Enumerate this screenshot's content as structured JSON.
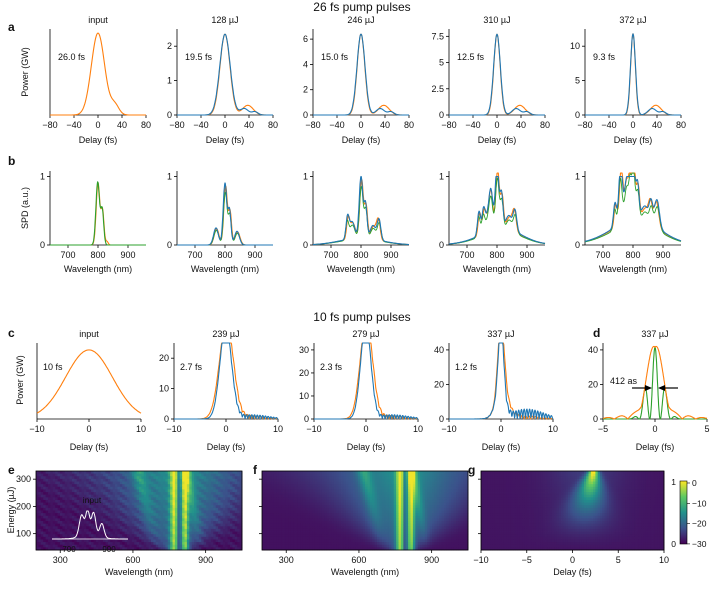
{
  "colors": {
    "sim": "#ff7f0e",
    "exp": "#1f77b4",
    "green": "#2ca02c",
    "white": "#ffffff"
  },
  "section_titles": {
    "top": "26 fs pump pulses",
    "bottom": "10 fs pump pulses"
  },
  "panel_letters": {
    "a": "a",
    "b": "b",
    "c": "c",
    "d": "d",
    "e": "e",
    "f": "f",
    "g": "g"
  },
  "chart_data": [
    {
      "id": "row-a",
      "type": "line",
      "ylabel": "Power (GW)",
      "xlabel": "Delay (fs)",
      "xlim": [
        -80,
        80
      ],
      "xticks": [
        -80,
        -40,
        0,
        40,
        80
      ],
      "subplots": [
        {
          "title": "input",
          "annotation": "26.0 fs",
          "ylim": [
            0,
            1.05
          ],
          "yticks": [],
          "peak": 1.0,
          "fwhm": 26,
          "series": [
            {
              "color_key": "sim"
            }
          ]
        },
        {
          "title": "128 µJ",
          "annotation": "19.5 fs",
          "ylim": [
            0,
            2.5
          ],
          "yticks": [
            0,
            1,
            2
          ],
          "peak": 2.35,
          "fwhm": 19.5,
          "series": [
            {
              "color_key": "sim"
            },
            {
              "color_key": "exp"
            }
          ]
        },
        {
          "title": "246 µJ",
          "annotation": "15.0 fs",
          "ylim": [
            0,
            6.8
          ],
          "yticks": [
            0,
            2,
            4,
            6
          ],
          "peak": 6.4,
          "fwhm": 15,
          "series": [
            {
              "color_key": "sim"
            },
            {
              "color_key": "exp"
            }
          ]
        },
        {
          "title": "310 µJ",
          "annotation": "12.5 fs",
          "ylim": [
            0,
            8.2
          ],
          "yticks": [
            0,
            2.5,
            5,
            7.5
          ],
          "peak": 7.7,
          "fwhm": 12.5,
          "series": [
            {
              "color_key": "sim"
            },
            {
              "color_key": "exp"
            }
          ]
        },
        {
          "title": "372 µJ",
          "annotation": "9.3 fs",
          "ylim": [
            0,
            12.5
          ],
          "yticks": [
            0,
            5,
            10
          ],
          "peak": 11.8,
          "fwhm": 9.3,
          "series": [
            {
              "color_key": "sim"
            },
            {
              "color_key": "exp"
            }
          ]
        }
      ]
    },
    {
      "id": "row-b",
      "type": "line",
      "ylabel": "SPD (a.u.)",
      "xlabel": "Wavelength (nm)",
      "xlim": [
        640,
        960
      ],
      "xticks": [
        700,
        800,
        900
      ],
      "ylim": [
        0,
        1.08
      ],
      "yticks": [
        0,
        1
      ],
      "subplots": [
        {
          "title": "",
          "bandwidth": 1
        },
        {
          "title": "",
          "bandwidth": 2
        },
        {
          "title": "",
          "bandwidth": 3
        },
        {
          "title": "",
          "bandwidth": 4
        },
        {
          "title": "",
          "bandwidth": 5
        }
      ]
    },
    {
      "id": "row-c",
      "type": "line",
      "ylabel": "Power (GW)",
      "xlabel": "Delay (fs)",
      "xlim": [
        -10,
        10
      ],
      "xticks": [
        -10,
        0,
        10
      ],
      "subplots": [
        {
          "title": "input",
          "annotation": "10 fs",
          "ylim": [
            0,
            1.1
          ],
          "yticks": [],
          "peak": 1.0,
          "fwhm": 10
        },
        {
          "title": "239 µJ",
          "annotation": "2.7 fs",
          "ylim": [
            0,
            25
          ],
          "yticks": [
            0,
            10,
            20
          ],
          "peak": 23.5,
          "fwhm": 2.7
        },
        {
          "title": "279 µJ",
          "annotation": "2.3 fs",
          "ylim": [
            0,
            33
          ],
          "yticks": [
            0,
            10,
            20,
            30
          ],
          "peak": 31.5,
          "fwhm": 2.3
        },
        {
          "title": "337 µJ",
          "annotation": "1.2 fs",
          "ylim": [
            0,
            44
          ],
          "yticks": [
            0,
            20,
            40
          ],
          "peak": 41.5,
          "fwhm": 1.2
        }
      ]
    },
    {
      "id": "panel-d",
      "type": "line",
      "title": "337 µJ",
      "xlabel": "Delay (fs)",
      "xlim": [
        -5,
        5
      ],
      "xticks": [
        -5,
        0,
        5
      ],
      "ylim": [
        0,
        44
      ],
      "yticks": [
        0,
        20,
        40
      ],
      "annotation": "412 as",
      "peak": 41.5,
      "fwhm": 0.412
    },
    {
      "id": "panel-e",
      "type": "heatmap",
      "ylabel": "Energy (µJ)",
      "xlabel": "Wavelength (nm)",
      "xlim": [
        200,
        1050
      ],
      "xticks": [
        300,
        600,
        900
      ],
      "ylim": [
        40,
        330
      ],
      "yticks": [
        100,
        200,
        300
      ],
      "inset": {
        "label": "input",
        "xticks": [
          700,
          900
        ]
      }
    },
    {
      "id": "panel-f",
      "type": "heatmap",
      "xlabel": "Wavelength (nm)",
      "xlim": [
        200,
        1050
      ],
      "xticks": [
        300,
        600,
        900
      ],
      "ylim": [
        40,
        330
      ]
    },
    {
      "id": "panel-g",
      "type": "heatmap",
      "xlabel": "Delay (fs)",
      "xlim": [
        -10,
        10
      ],
      "xticks": [
        -10,
        -5,
        0,
        5,
        10
      ],
      "ylim": [
        40,
        330
      ]
    },
    {
      "id": "colorbar",
      "type": "colorbar",
      "left_ticks": [
        0,
        1
      ],
      "right_ticks": [
        0,
        -10,
        -20,
        -30
      ]
    }
  ]
}
